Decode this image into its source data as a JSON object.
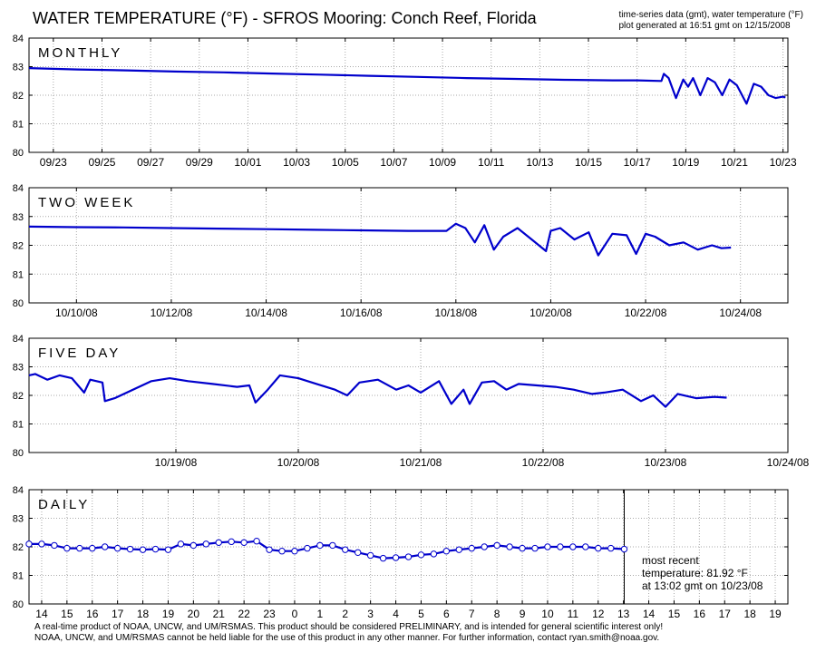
{
  "header": {
    "title": "WATER TEMPERATURE (°F)  -  SFROS Mooring: Conch Reef, Florida",
    "meta_line1": "time-series data (gmt), water temperature (°F)",
    "meta_line2": "plot generated at 16:51 gmt on 12/15/2008"
  },
  "footer": {
    "line1": "A real-time product of NOAA, UNCW, and UM/RSMAS. This product should be considered PRELIMINARY, and is intended for general scientific interest only!",
    "line2": "NOAA, UNCW, and UM/RSMAS cannot be held liable for the use of this product in any other manner.  For further information, contact ryan.smith@noaa.gov."
  },
  "most_recent": {
    "line1": "most recent",
    "line2": "temperature: 81.92 °F",
    "line3": "at 13:02 gmt on 10/23/08"
  },
  "colors": {
    "series": "#0000cc",
    "grid": "#aaaaaa",
    "axis": "#000000"
  },
  "chart_data": [
    {
      "type": "line",
      "panel_label": "MONTHLY",
      "ylim": [
        80,
        84
      ],
      "yticks": [
        80,
        81,
        82,
        83,
        84
      ],
      "xlim": [
        0,
        31.2
      ],
      "x_unit": "days from 09/22/08 00:00 gmt",
      "xticks": [
        1,
        3,
        5,
        7,
        9,
        11,
        13,
        15,
        17,
        19,
        21,
        23,
        25,
        27,
        29,
        31
      ],
      "xtick_labels": [
        "09/23",
        "09/25",
        "09/27",
        "09/29",
        "10/01",
        "10/03",
        "10/05",
        "10/07",
        "10/09",
        "10/11",
        "10/13",
        "10/15",
        "10/17",
        "10/19",
        "10/21",
        "10/23"
      ],
      "grid": true,
      "series": [
        {
          "x": [
            0,
            2,
            4,
            6,
            8,
            10,
            12,
            14,
            16,
            18,
            20,
            22,
            24,
            25,
            26,
            26.1,
            26.3,
            26.6,
            26.9,
            27.1,
            27.3,
            27.6,
            27.9,
            28.2,
            28.5,
            28.8,
            29.1,
            29.5,
            29.8,
            30.1,
            30.4,
            30.7,
            31.0,
            31.1
          ],
          "values": [
            82.95,
            82.9,
            82.87,
            82.83,
            82.8,
            82.76,
            82.72,
            82.68,
            82.64,
            82.6,
            82.57,
            82.54,
            82.52,
            82.52,
            82.5,
            82.75,
            82.6,
            81.9,
            82.55,
            82.3,
            82.6,
            82.0,
            82.6,
            82.45,
            82.0,
            82.55,
            82.35,
            81.7,
            82.4,
            82.3,
            82.0,
            81.9,
            81.95,
            81.92
          ]
        }
      ]
    },
    {
      "type": "line",
      "panel_label": "TWO WEEK",
      "ylim": [
        80,
        84
      ],
      "yticks": [
        80,
        81,
        82,
        83,
        84
      ],
      "xlim": [
        0,
        16
      ],
      "x_unit": "days from 10/09/08 00:00 gmt",
      "xticks": [
        1,
        3,
        5,
        7,
        9,
        11,
        13,
        15
      ],
      "xtick_labels": [
        "10/10/08",
        "10/12/08",
        "10/14/08",
        "10/16/08",
        "10/18/08",
        "10/20/08",
        "10/22/08",
        "10/24/08"
      ],
      "grid": true,
      "series": [
        {
          "x": [
            0,
            1,
            2,
            3,
            4,
            5,
            6,
            7,
            8,
            8.8,
            9.0,
            9.2,
            9.4,
            9.6,
            9.8,
            10.0,
            10.3,
            10.6,
            10.9,
            11.0,
            11.2,
            11.5,
            11.8,
            12.0,
            12.3,
            12.6,
            12.8,
            13.0,
            13.2,
            13.5,
            13.8,
            14.1,
            14.4,
            14.6,
            14.8
          ],
          "values": [
            82.65,
            82.63,
            82.62,
            82.6,
            82.58,
            82.56,
            82.54,
            82.52,
            82.5,
            82.5,
            82.75,
            82.6,
            82.1,
            82.7,
            81.85,
            82.3,
            82.6,
            82.2,
            81.8,
            82.5,
            82.6,
            82.2,
            82.45,
            81.65,
            82.4,
            82.35,
            81.7,
            82.4,
            82.3,
            82.0,
            82.1,
            81.85,
            82.0,
            81.9,
            81.92
          ]
        }
      ]
    },
    {
      "type": "line",
      "panel_label": "FIVE DAY",
      "ylim": [
        80,
        84
      ],
      "yticks": [
        80,
        81,
        82,
        83,
        84
      ],
      "xlim": [
        0,
        6.2
      ],
      "x_unit": "days from 10/18/08 00:00 gmt",
      "xticks": [
        1.2,
        2.2,
        3.2,
        4.2,
        5.2,
        6.2
      ],
      "xtick_labels": [
        "10/19/08",
        "10/20/08",
        "10/21/08",
        "10/22/08",
        "10/23/08",
        "10/24/08"
      ],
      "grid": true,
      "series": [
        {
          "x": [
            0,
            0.05,
            0.15,
            0.25,
            0.35,
            0.45,
            0.5,
            0.6,
            0.62,
            0.7,
            1.0,
            1.15,
            1.3,
            1.5,
            1.7,
            1.8,
            1.85,
            1.95,
            2.05,
            2.2,
            2.35,
            2.5,
            2.6,
            2.7,
            2.85,
            3.0,
            3.1,
            3.2,
            3.35,
            3.45,
            3.55,
            3.6,
            3.7,
            3.8,
            3.9,
            4.0,
            4.15,
            4.3,
            4.45,
            4.6,
            4.7,
            4.85,
            5.0,
            5.1,
            5.2,
            5.3,
            5.45,
            5.6,
            5.7
          ],
          "values": [
            82.7,
            82.75,
            82.55,
            82.7,
            82.6,
            82.1,
            82.55,
            82.45,
            81.8,
            81.9,
            82.5,
            82.6,
            82.5,
            82.4,
            82.3,
            82.35,
            81.75,
            82.2,
            82.7,
            82.6,
            82.4,
            82.2,
            82.0,
            82.45,
            82.55,
            82.2,
            82.35,
            82.1,
            82.5,
            81.7,
            82.2,
            81.7,
            82.45,
            82.5,
            82.2,
            82.4,
            82.35,
            82.3,
            82.2,
            82.05,
            82.1,
            82.2,
            81.8,
            82.0,
            81.6,
            82.05,
            81.9,
            81.95,
            81.92
          ]
        }
      ]
    },
    {
      "type": "line",
      "panel_label": "DAILY",
      "ylim": [
        80,
        84
      ],
      "yticks": [
        80,
        81,
        82,
        83,
        84
      ],
      "xlim": [
        13.5,
        43.5
      ],
      "x_unit": "hours gmt from 10/22/08 00:00",
      "xticks": [
        14,
        15,
        16,
        17,
        18,
        19,
        20,
        21,
        22,
        23,
        24,
        25,
        26,
        27,
        28,
        29,
        30,
        31,
        32,
        33,
        34,
        35,
        36,
        37,
        38,
        39,
        40,
        41,
        42,
        43
      ],
      "xtick_labels": [
        "14",
        "15",
        "16",
        "17",
        "18",
        "19",
        "20",
        "21",
        "22",
        "23",
        "0",
        "1",
        "2",
        "3",
        "4",
        "5",
        "6",
        "7",
        "8",
        "9",
        "10",
        "11",
        "12",
        "13",
        "14",
        "15",
        "16",
        "17",
        "18",
        "19"
      ],
      "grid": true,
      "current_time_marker": 37.03,
      "series": [
        {
          "x": [
            13.5,
            14,
            14.5,
            15,
            15.5,
            16,
            16.5,
            17,
            17.5,
            18,
            18.5,
            19,
            19.5,
            20,
            20.5,
            21,
            21.5,
            22,
            22.5,
            23,
            23.5,
            24,
            24.5,
            25,
            25.5,
            26,
            26.5,
            27,
            27.5,
            28,
            28.5,
            29,
            29.5,
            30,
            30.5,
            31,
            31.5,
            32,
            32.5,
            33,
            33.5,
            34,
            34.5,
            35,
            35.5,
            36,
            36.5,
            37.03
          ],
          "values": [
            82.1,
            82.1,
            82.05,
            81.95,
            81.95,
            81.95,
            82.0,
            81.95,
            81.92,
            81.9,
            81.92,
            81.9,
            82.1,
            82.05,
            82.1,
            82.15,
            82.18,
            82.15,
            82.2,
            81.9,
            81.85,
            81.85,
            81.95,
            82.05,
            82.05,
            81.9,
            81.8,
            81.7,
            81.6,
            81.62,
            81.65,
            81.72,
            81.75,
            81.85,
            81.9,
            81.95,
            82.0,
            82.05,
            82.0,
            81.95,
            81.95,
            82.0,
            82.0,
            82.0,
            82.0,
            81.95,
            81.95,
            81.92
          ]
        }
      ]
    }
  ]
}
